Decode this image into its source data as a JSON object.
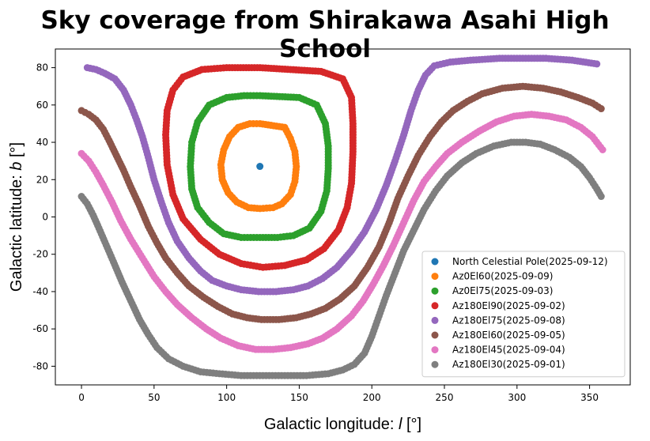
{
  "chart_data": {
    "type": "scatter",
    "title": "Sky coverage from Shirakawa Asahi High School",
    "xlabel_prefix": "Galactic longitude: ",
    "xlabel_var": "l",
    "xlabel_unit": " [°]",
    "ylabel_prefix": "Galactic latitude: ",
    "ylabel_var": "b",
    "ylabel_unit": " [°]",
    "xlim": [
      -18,
      378
    ],
    "ylim": [
      -90,
      90
    ],
    "xticks": [
      0,
      50,
      100,
      150,
      200,
      250,
      300,
      350
    ],
    "yticks": [
      -80,
      -60,
      -40,
      -20,
      0,
      20,
      40,
      60,
      80
    ],
    "grid": false,
    "legend_position": "lower-right",
    "series": [
      {
        "name": "North Celestial Pole(2025-09-12)",
        "color": "#1f77b4",
        "points": [
          [
            122.9,
            27.1
          ]
        ]
      },
      {
        "name": "Az0El60(2025-09-09)",
        "color": "#ff7f0e",
        "points": [
          [
            123,
            50
          ],
          [
            140,
            48
          ],
          [
            144,
            42
          ],
          [
            147,
            35
          ],
          [
            148,
            27
          ],
          [
            147,
            19
          ],
          [
            144,
            12
          ],
          [
            138,
            7
          ],
          [
            132,
            5
          ],
          [
            123,
            4.5
          ],
          [
            115,
            5
          ],
          [
            107,
            8
          ],
          [
            101,
            13
          ],
          [
            97,
            20
          ],
          [
            96,
            28
          ],
          [
            98,
            36
          ],
          [
            102,
            43
          ],
          [
            108,
            48
          ],
          [
            116,
            50
          ]
        ]
      },
      {
        "name": "Az0El75(2025-09-03)",
        "color": "#2ca02c",
        "points": [
          [
            123,
            65
          ],
          [
            150,
            64
          ],
          [
            162,
            60
          ],
          [
            168,
            50
          ],
          [
            170,
            38
          ],
          [
            170,
            26
          ],
          [
            169,
            14
          ],
          [
            165,
            3
          ],
          [
            157,
            -6
          ],
          [
            146,
            -10
          ],
          [
            135,
            -11
          ],
          [
            123,
            -11
          ],
          [
            110,
            -11
          ],
          [
            98,
            -9
          ],
          [
            88,
            -3
          ],
          [
            80,
            5
          ],
          [
            76,
            15
          ],
          [
            75,
            27
          ],
          [
            76,
            40
          ],
          [
            80,
            51
          ],
          [
            88,
            60
          ],
          [
            100,
            64
          ],
          [
            112,
            65
          ]
        ]
      },
      {
        "name": "Az180El90(2025-09-02)",
        "color": "#d62728",
        "points": [
          [
            123,
            80
          ],
          [
            165,
            78
          ],
          [
            180,
            74
          ],
          [
            186,
            64
          ],
          [
            187,
            50
          ],
          [
            187,
            35
          ],
          [
            186,
            18
          ],
          [
            183,
            5
          ],
          [
            177,
            -7
          ],
          [
            167,
            -17
          ],
          [
            155,
            -23
          ],
          [
            140,
            -26
          ],
          [
            125,
            -27
          ],
          [
            110,
            -25
          ],
          [
            95,
            -20
          ],
          [
            82,
            -12
          ],
          [
            70,
            -1
          ],
          [
            63,
            12
          ],
          [
            59,
            28
          ],
          [
            58,
            44
          ],
          [
            59,
            57
          ],
          [
            63,
            68
          ],
          [
            70,
            75
          ],
          [
            83,
            79
          ],
          [
            100,
            80
          ]
        ]
      },
      {
        "name": "Az180El75(2025-09-08)",
        "color": "#9467bd",
        "points": [
          [
            4,
            80
          ],
          [
            10,
            79
          ],
          [
            16,
            77
          ],
          [
            23,
            74
          ],
          [
            29,
            68
          ],
          [
            34,
            60
          ],
          [
            38,
            52
          ],
          [
            42,
            43
          ],
          [
            46,
            32
          ],
          [
            50,
            20
          ],
          [
            55,
            8
          ],
          [
            60,
            -3
          ],
          [
            66,
            -13
          ],
          [
            74,
            -22
          ],
          [
            82,
            -29
          ],
          [
            90,
            -34
          ],
          [
            100,
            -37
          ],
          [
            110,
            -39
          ],
          [
            122,
            -40
          ],
          [
            134,
            -40
          ],
          [
            146,
            -39
          ],
          [
            156,
            -37
          ],
          [
            166,
            -33
          ],
          [
            176,
            -27
          ],
          [
            186,
            -18
          ],
          [
            195,
            -8
          ],
          [
            203,
            4
          ],
          [
            210,
            17
          ],
          [
            216,
            30
          ],
          [
            222,
            44
          ],
          [
            227,
            57
          ],
          [
            232,
            68
          ],
          [
            237,
            76
          ],
          [
            243,
            81
          ],
          [
            254,
            83
          ],
          [
            268,
            84
          ],
          [
            288,
            85
          ],
          [
            320,
            85
          ],
          [
            338,
            84
          ],
          [
            355,
            82
          ]
        ]
      },
      {
        "name": "Az180El60(2025-09-05)",
        "color": "#8c564b",
        "points": [
          [
            0,
            57
          ],
          [
            5,
            55
          ],
          [
            10,
            52
          ],
          [
            15,
            47
          ],
          [
            19,
            41
          ],
          [
            24,
            33
          ],
          [
            29,
            25
          ],
          [
            34,
            16
          ],
          [
            40,
            6
          ],
          [
            46,
            -5
          ],
          [
            52,
            -14
          ],
          [
            58,
            -22
          ],
          [
            66,
            -30
          ],
          [
            74,
            -37
          ],
          [
            84,
            -43
          ],
          [
            94,
            -48
          ],
          [
            104,
            -52
          ],
          [
            114,
            -54
          ],
          [
            124,
            -55
          ],
          [
            136,
            -55
          ],
          [
            148,
            -54
          ],
          [
            158,
            -52
          ],
          [
            168,
            -49
          ],
          [
            178,
            -44
          ],
          [
            188,
            -37
          ],
          [
            197,
            -27
          ],
          [
            205,
            -16
          ],
          [
            212,
            -3
          ],
          [
            218,
            10
          ],
          [
            225,
            22
          ],
          [
            232,
            33
          ],
          [
            240,
            43
          ],
          [
            248,
            51
          ],
          [
            256,
            57
          ],
          [
            266,
            62
          ],
          [
            276,
            66
          ],
          [
            290,
            69
          ],
          [
            304,
            70
          ],
          [
            318,
            69
          ],
          [
            330,
            67
          ],
          [
            342,
            64
          ],
          [
            352,
            61
          ],
          [
            358,
            58
          ]
        ]
      },
      {
        "name": "Az180El45(2025-09-04)",
        "color": "#e377c2",
        "points": [
          [
            0,
            34
          ],
          [
            5,
            30
          ],
          [
            10,
            24
          ],
          [
            15,
            17
          ],
          [
            21,
            8
          ],
          [
            27,
            -2
          ],
          [
            34,
            -12
          ],
          [
            42,
            -22
          ],
          [
            50,
            -32
          ],
          [
            58,
            -40
          ],
          [
            66,
            -47
          ],
          [
            76,
            -54
          ],
          [
            86,
            -60
          ],
          [
            96,
            -65
          ],
          [
            108,
            -69
          ],
          [
            120,
            -71
          ],
          [
            132,
            -71
          ],
          [
            144,
            -70
          ],
          [
            156,
            -68
          ],
          [
            166,
            -65
          ],
          [
            176,
            -60
          ],
          [
            186,
            -53
          ],
          [
            194,
            -45
          ],
          [
            201,
            -36
          ],
          [
            208,
            -26
          ],
          [
            215,
            -15
          ],
          [
            222,
            -3
          ],
          [
            229,
            9
          ],
          [
            236,
            19
          ],
          [
            244,
            27
          ],
          [
            252,
            34
          ],
          [
            262,
            40
          ],
          [
            274,
            46
          ],
          [
            286,
            51
          ],
          [
            298,
            54
          ],
          [
            310,
            55
          ],
          [
            322,
            54
          ],
          [
            334,
            52
          ],
          [
            344,
            48
          ],
          [
            352,
            43
          ],
          [
            359,
            36
          ]
        ]
      },
      {
        "name": "Az180El30(2025-09-01)",
        "color": "#7f7f7f",
        "points": [
          [
            0,
            11
          ],
          [
            4,
            7
          ],
          [
            8,
            1
          ],
          [
            12,
            -6
          ],
          [
            17,
            -15
          ],
          [
            22,
            -24
          ],
          [
            28,
            -35
          ],
          [
            34,
            -45
          ],
          [
            40,
            -55
          ],
          [
            46,
            -63
          ],
          [
            52,
            -70
          ],
          [
            60,
            -76
          ],
          [
            70,
            -80
          ],
          [
            82,
            -83
          ],
          [
            95,
            -84
          ],
          [
            110,
            -85
          ],
          [
            125,
            -85
          ],
          [
            140,
            -85
          ],
          [
            155,
            -85
          ],
          [
            170,
            -84
          ],
          [
            180,
            -82
          ],
          [
            188,
            -79
          ],
          [
            195,
            -73
          ],
          [
            200,
            -64
          ],
          [
            205,
            -53
          ],
          [
            210,
            -42
          ],
          [
            216,
            -30
          ],
          [
            222,
            -18
          ],
          [
            229,
            -7
          ],
          [
            236,
            4
          ],
          [
            244,
            14
          ],
          [
            252,
            22
          ],
          [
            262,
            29
          ],
          [
            272,
            34
          ],
          [
            284,
            38
          ],
          [
            296,
            40
          ],
          [
            306,
            40
          ],
          [
            316,
            39
          ],
          [
            326,
            36
          ],
          [
            336,
            32
          ],
          [
            344,
            27
          ],
          [
            350,
            21
          ],
          [
            355,
            15
          ],
          [
            358,
            11
          ]
        ]
      }
    ]
  }
}
